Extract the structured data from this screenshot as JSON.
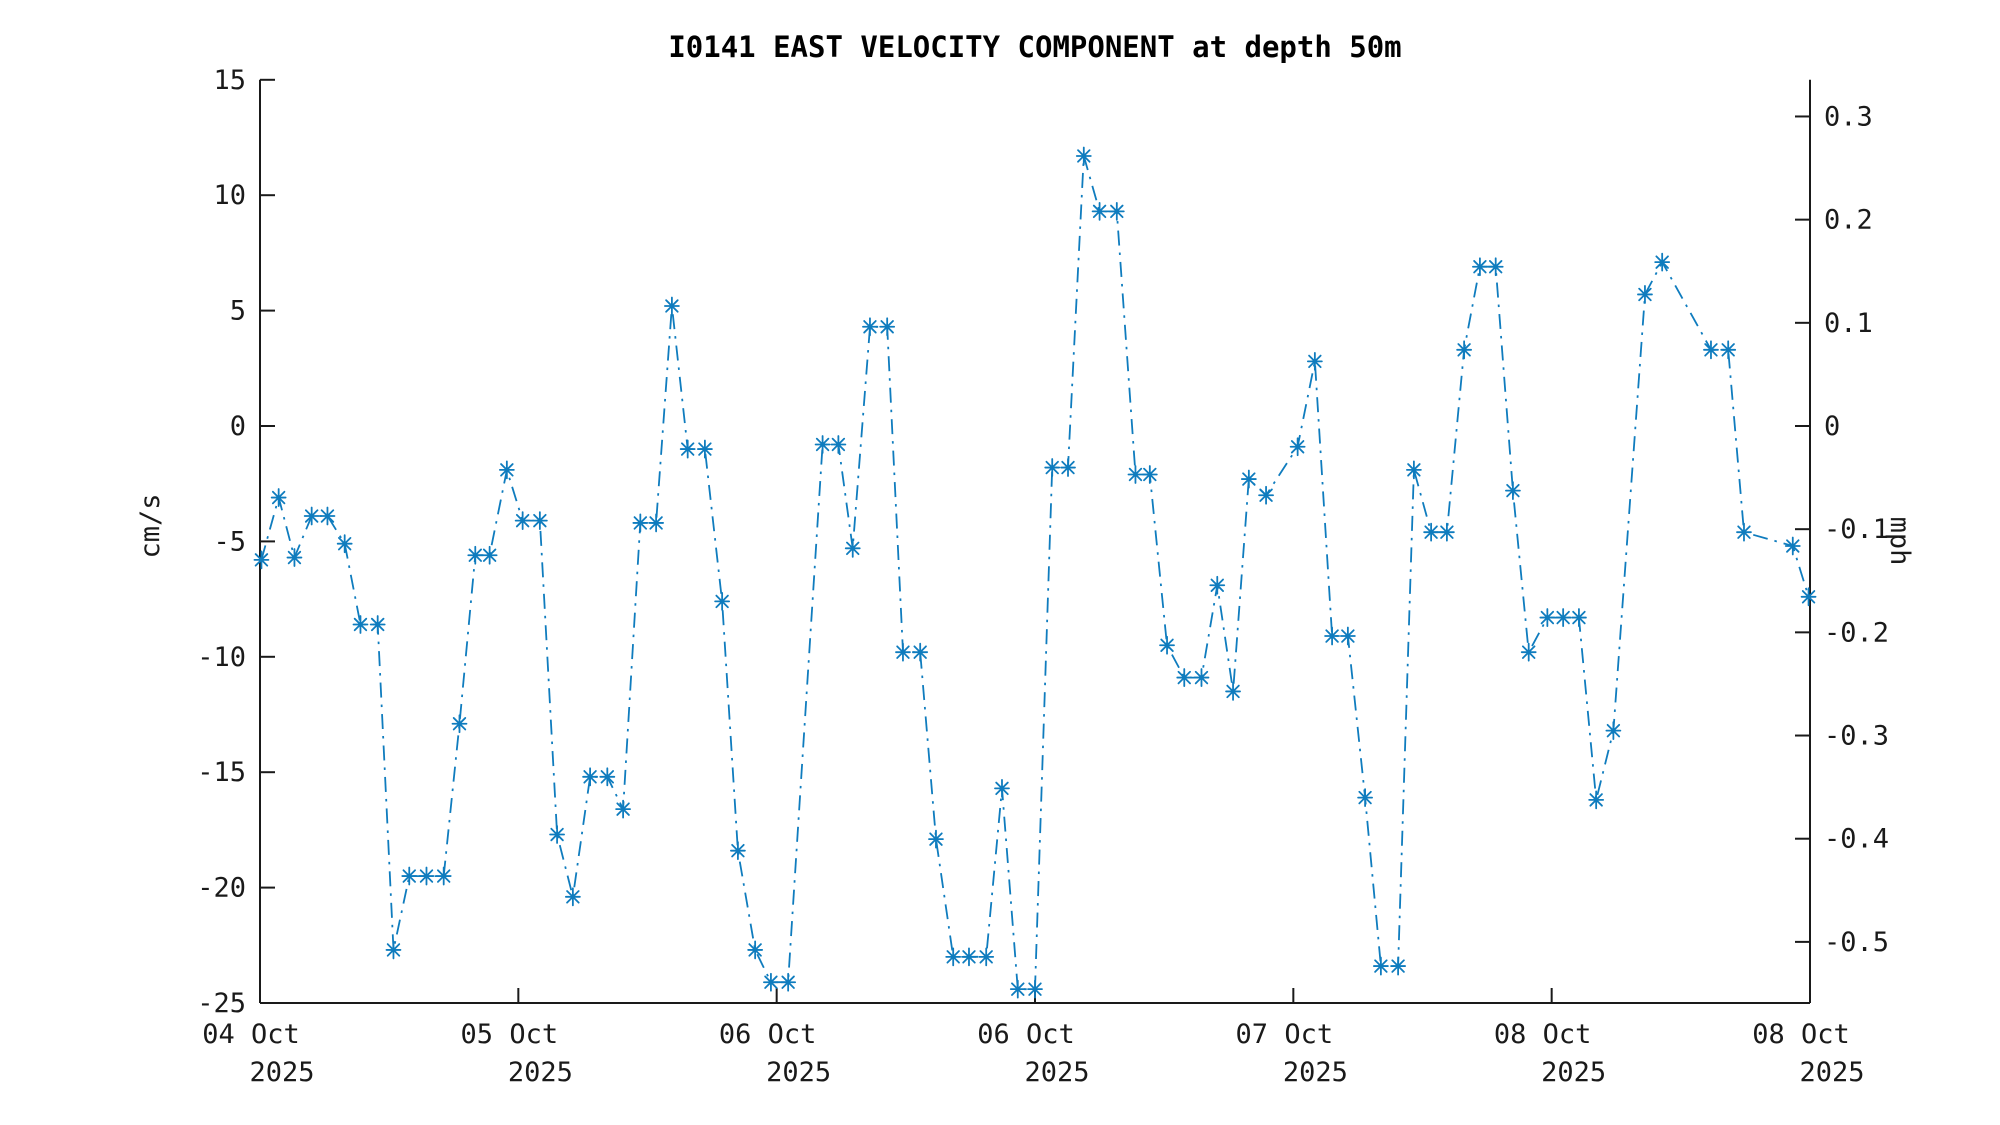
{
  "title": "I0141 EAST VELOCITY COMPONENT at depth 50m",
  "axes": {
    "left": {
      "label": "cm/s",
      "tick_values": [
        15,
        10,
        5,
        0,
        -5,
        -10,
        -15,
        -20,
        -25
      ],
      "range": [
        -25,
        15
      ]
    },
    "right": {
      "label": "mph",
      "tick_values": [
        0.3,
        0.2,
        0.1,
        0,
        -0.1,
        -0.2,
        -0.3,
        -0.4,
        -0.5
      ],
      "range": [
        -0.5592,
        0.3355
      ]
    },
    "bottom": {
      "tick_labels_line1": [
        "04 Oct",
        "05 Oct",
        "06 Oct",
        "06 Oct",
        "07 Oct",
        "08 Oct",
        "08 Oct"
      ],
      "tick_labels_line2": [
        "2025",
        "2025",
        "2025",
        "2025",
        "2025",
        "2025",
        "2025"
      ]
    }
  },
  "colors": {
    "series": "#0f7cbe",
    "axis": "#1a1a1a",
    "background": "#ffffff"
  },
  "chart_data": {
    "type": "line",
    "title": "I0141 EAST VELOCITY COMPONENT at depth 50m",
    "ylabel": "cm/s",
    "y2label": "mph",
    "x_start_label": "04 Oct 2025",
    "x_end_label": "08 Oct 2025",
    "x_axis_span_hours": 108,
    "ylim": [
      -25,
      15
    ],
    "y2lim_mph": [
      -0.5592,
      0.3355
    ],
    "grid": false,
    "legend": "none",
    "line_style": "dash-dot",
    "marker": "asterisk",
    "x_hours": [
      0.1,
      1.3,
      2.4,
      3.6,
      4.7,
      5.9,
      7.0,
      8.2,
      9.3,
      10.4,
      11.6,
      12.8,
      13.9,
      15.0,
      16.0,
      17.2,
      18.3,
      19.5,
      20.7,
      21.8,
      23.0,
      24.2,
      25.3,
      26.5,
      27.6,
      28.7,
      29.8,
      31.0,
      32.2,
      33.3,
      34.5,
      35.6,
      36.8,
      39.2,
      40.3,
      41.3,
      42.5,
      43.7,
      44.8,
      46.0,
      47.1,
      48.3,
      49.4,
      50.6,
      51.7,
      52.8,
      54.0,
      55.2,
      56.3,
      57.4,
      58.5,
      59.7,
      61.0,
      62.0,
      63.2,
      64.4,
      65.6,
      66.7,
      67.8,
      68.9,
      70.1,
      72.3,
      73.5,
      74.7,
      75.8,
      77.0,
      78.1,
      79.3,
      80.4,
      81.6,
      82.7,
      83.9,
      85.0,
      86.1,
      87.3,
      88.4,
      89.7,
      90.8,
      91.9,
      93.1,
      94.3,
      96.5,
      97.7,
      101.1,
      102.3,
      103.4,
      106.8,
      107.9
    ],
    "values_cm_per_s": [
      -5.8,
      -3.1,
      -5.7,
      -3.9,
      -3.9,
      -5.1,
      -8.6,
      -8.6,
      -22.7,
      -19.5,
      -19.5,
      -19.5,
      -12.9,
      -5.6,
      -5.6,
      -1.9,
      -4.1,
      -4.1,
      -17.7,
      -20.4,
      -15.2,
      -15.2,
      -16.6,
      -4.2,
      -4.2,
      5.2,
      -1.0,
      -1.0,
      -7.6,
      -18.4,
      -22.7,
      -24.1,
      -24.1,
      -0.8,
      -0.8,
      -5.3,
      4.3,
      4.3,
      -9.8,
      -9.8,
      -17.9,
      -23.0,
      -23.0,
      -23.0,
      -15.7,
      -24.4,
      -24.4,
      -1.8,
      -1.8,
      11.7,
      9.3,
      9.3,
      -2.1,
      -2.1,
      -9.5,
      -10.9,
      -10.9,
      -6.9,
      -11.5,
      -2.3,
      -3.0,
      -0.9,
      2.8,
      -9.1,
      -9.1,
      -16.1,
      -23.4,
      -23.4,
      -1.9,
      -4.6,
      -4.6,
      3.3,
      6.9,
      6.9,
      -2.8,
      -9.8,
      -8.3,
      -8.3,
      -8.3,
      -16.2,
      -13.2,
      5.7,
      7.1,
      3.3,
      3.3,
      -4.6,
      -5.2,
      -7.4
    ]
  }
}
